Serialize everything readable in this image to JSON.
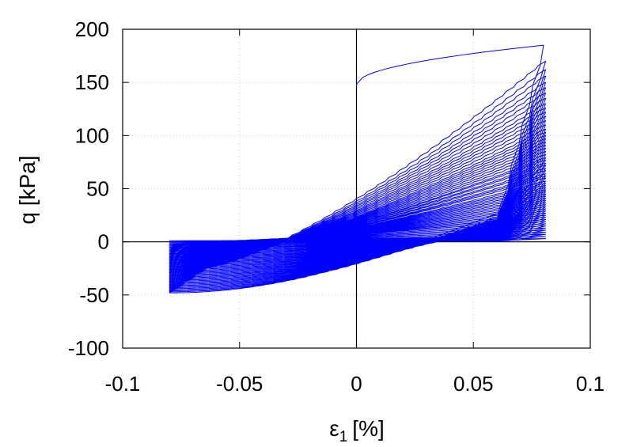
{
  "chart_data": {
    "type": "line",
    "title": "",
    "xlabel": "ε1 [%]",
    "xlabel_parts": {
      "symbol": "ε",
      "subscript": "1",
      "unit": "[%]"
    },
    "ylabel": "q [kPa]",
    "xlim": [
      -0.1,
      0.1
    ],
    "ylim": [
      -100,
      200
    ],
    "xticks": [
      -0.1,
      -0.05,
      0,
      0.05,
      0.1
    ],
    "xtick_labels": [
      "-0.1",
      "-0.05",
      "0",
      "0.05",
      "0.1"
    ],
    "yticks": [
      -100,
      -50,
      0,
      50,
      100,
      150,
      200
    ],
    "ytick_labels": [
      "-100",
      "-50",
      "0",
      "50",
      "100",
      "150",
      "200"
    ],
    "grid": true,
    "zero_lines": true,
    "line_color": "#0000ff",
    "strain_amplitude": 0.08,
    "cycle_peaks_q": [
      185,
      170,
      162,
      156,
      150,
      145,
      140,
      135,
      130,
      126,
      122,
      118,
      114,
      110,
      106,
      103,
      100,
      97,
      94,
      91,
      88,
      85,
      82,
      79,
      77,
      74,
      72,
      69,
      67,
      64,
      62,
      60,
      57,
      55,
      53,
      51,
      49,
      47,
      45,
      43,
      41,
      39,
      37,
      35,
      33,
      31,
      29,
      27,
      25,
      23,
      21,
      19,
      17,
      15,
      13,
      11,
      9,
      7,
      5,
      3
    ],
    "cycle_troughs_q": [
      -48,
      -47,
      -46,
      -45,
      -44,
      -43,
      -42,
      -41,
      -40,
      -39,
      -38,
      -37,
      -36,
      -35,
      -34,
      -33,
      -32,
      -31,
      -30,
      -29,
      -28,
      -27,
      -26,
      -25,
      -24,
      -23,
      -22,
      -21,
      -20,
      -19,
      -18,
      -17,
      -16,
      -15,
      -14,
      -13,
      -12,
      -11,
      -10,
      -9,
      -8,
      -7,
      -6,
      -5,
      -4,
      -3,
      -2,
      -1,
      0,
      1,
      1,
      1,
      1,
      1,
      1,
      1,
      1,
      1,
      1,
      1
    ]
  }
}
